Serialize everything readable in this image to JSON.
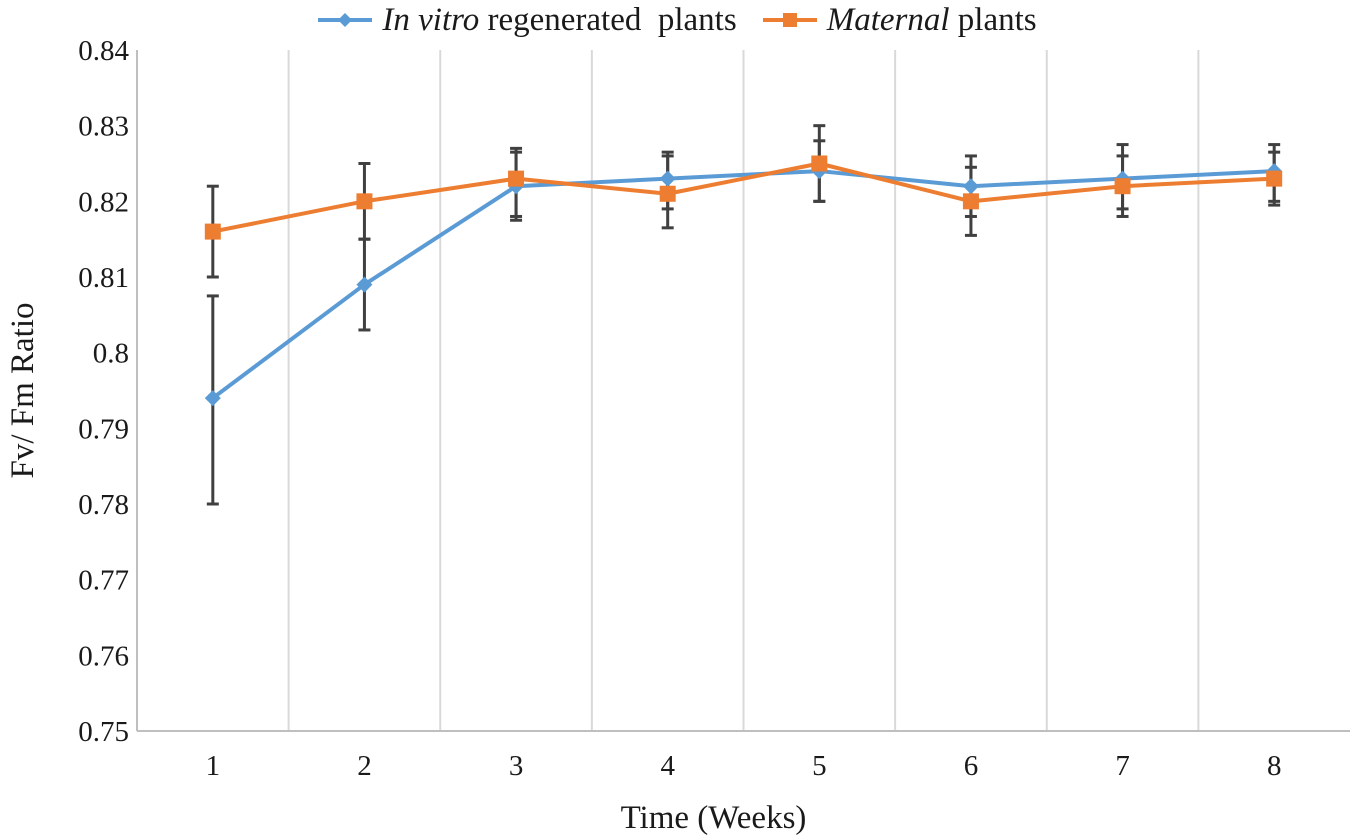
{
  "chart_data": {
    "type": "line",
    "title": "",
    "xlabel": "Time (Weeks)",
    "ylabel": "Fv/ Fm Ratio",
    "categories": [
      "1",
      "2",
      "3",
      "4",
      "5",
      "6",
      "7",
      "8"
    ],
    "y_ticks": [
      "0.75",
      "0.76",
      "0.77",
      "0.78",
      "0.79",
      "0.8",
      "0.81",
      "0.82",
      "0.83",
      "0.84"
    ],
    "ylim": [
      0.75,
      0.84
    ],
    "grid": "vertical",
    "legend_position": "top",
    "series": [
      {
        "name": "In vitro regenerated plants",
        "name_italic": "In vitro",
        "name_rest": " regenerated  plants",
        "marker": "diamond",
        "color": "#5b9bd5",
        "values": [
          0.794,
          0.809,
          0.822,
          0.823,
          0.824,
          0.822,
          0.823,
          0.824
        ],
        "error_low": [
          0.78,
          0.803,
          0.818,
          0.819,
          0.82,
          0.818,
          0.819,
          0.82
        ],
        "error_high": [
          0.8075,
          0.815,
          0.8265,
          0.826,
          0.828,
          0.826,
          0.8275,
          0.8275
        ]
      },
      {
        "name": "Maternal plants",
        "name_italic": "Maternal",
        "name_rest": " plants",
        "marker": "square",
        "color": "#ed7d31",
        "values": [
          0.816,
          0.82,
          0.823,
          0.821,
          0.825,
          0.82,
          0.822,
          0.823
        ],
        "error_low": [
          0.81,
          0.815,
          0.8175,
          0.8165,
          0.82,
          0.8155,
          0.818,
          0.8195
        ],
        "error_high": [
          0.822,
          0.825,
          0.827,
          0.8265,
          0.83,
          0.8245,
          0.826,
          0.8265
        ]
      }
    ],
    "error_bar_color": "#404040"
  }
}
